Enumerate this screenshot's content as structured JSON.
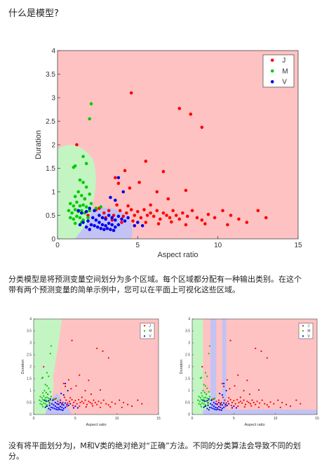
{
  "page": {
    "title": "什么是模型?",
    "para1_line1": "分类模型是将预测变量空间划分为多个区域。每个区域都分配有一种输出类别。在这个",
    "para1_line2": "带有两个预测变量的简单示例中，您可以在平面上可视化这些区域。",
    "para2_line1": "没有将平面划分为J，M和V类的绝对绝对“正确”方法。不同的分类算法会导致不同的划",
    "para2_line2": "分。"
  },
  "colors": {
    "J": "#ff0000",
    "M": "#00cc00",
    "V": "#0000ee",
    "region_J": "#ffc2c2",
    "region_M": "#c2f5c2",
    "region_V": "#c2c2f5"
  },
  "chart_data": [
    {
      "type": "scatter",
      "xlabel": "Aspect ratio",
      "ylabel": "Duration",
      "xlim": [
        0,
        15
      ],
      "ylim": [
        0,
        4
      ],
      "xticks": [
        "0",
        "5",
        "10",
        "15"
      ],
      "yticks": [
        "0",
        "0.5",
        "1",
        "1.5",
        "2",
        "2.5",
        "3",
        "3.5",
        "4"
      ],
      "legend": {
        "position": "top-right",
        "entries": [
          "J",
          "M",
          "V"
        ]
      },
      "series": [
        {
          "name": "J",
          "points": [
            [
              4.6,
              3.1
            ],
            [
              7.6,
              2.77
            ],
            [
              8.3,
              2.65
            ],
            [
              9.0,
              2.37
            ],
            [
              1.2,
              2.0
            ],
            [
              5.5,
              1.65
            ],
            [
              6.6,
              1.43
            ],
            [
              8.0,
              1.03
            ],
            [
              3.8,
              1.18
            ],
            [
              4.5,
              1.08
            ],
            [
              3.6,
              1.3
            ],
            [
              4.2,
              1.45
            ],
            [
              5.1,
              1.2
            ],
            [
              6.2,
              1.0
            ],
            [
              6.9,
              0.85
            ],
            [
              5.8,
              0.72
            ],
            [
              2.6,
              0.65
            ],
            [
              2.9,
              0.55
            ],
            [
              3.2,
              0.6
            ],
            [
              3.5,
              0.5
            ],
            [
              3.7,
              0.72
            ],
            [
              3.9,
              0.6
            ],
            [
              4.1,
              0.48
            ],
            [
              4.3,
              0.55
            ],
            [
              4.4,
              0.7
            ],
            [
              4.6,
              0.62
            ],
            [
              4.8,
              0.5
            ],
            [
              5.0,
              0.58
            ],
            [
              5.2,
              0.45
            ],
            [
              5.4,
              0.62
            ],
            [
              5.6,
              0.5
            ],
            [
              5.8,
              0.55
            ],
            [
              6.0,
              0.48
            ],
            [
              6.2,
              0.6
            ],
            [
              6.4,
              0.42
            ],
            [
              6.6,
              0.55
            ],
            [
              6.8,
              0.5
            ],
            [
              7.0,
              0.45
            ],
            [
              7.2,
              0.6
            ],
            [
              7.4,
              0.5
            ],
            [
              7.6,
              0.42
            ],
            [
              7.8,
              0.55
            ],
            [
              8.1,
              0.48
            ],
            [
              8.4,
              0.6
            ],
            [
              8.7,
              0.45
            ],
            [
              9.0,
              0.4
            ],
            [
              9.4,
              0.52
            ],
            [
              9.8,
              0.45
            ],
            [
              10.3,
              0.6
            ],
            [
              10.8,
              0.5
            ],
            [
              11.3,
              0.42
            ],
            [
              11.8,
              0.35
            ],
            [
              12.5,
              0.6
            ],
            [
              13.0,
              0.45
            ],
            [
              3.4,
              0.4
            ],
            [
              4.0,
              0.35
            ],
            [
              4.7,
              0.38
            ],
            [
              5.5,
              0.35
            ],
            [
              6.3,
              0.32
            ],
            [
              7.1,
              0.36
            ],
            [
              8.0,
              0.3
            ],
            [
              9.2,
              0.32
            ],
            [
              10.6,
              0.3
            ],
            [
              3.0,
              0.45
            ],
            [
              2.4,
              0.62
            ],
            [
              1.7,
              0.85
            ],
            [
              1.9,
              0.5
            ]
          ]
        },
        {
          "name": "M",
          "points": [
            [
              2.1,
              2.87
            ],
            [
              2.0,
              2.55
            ],
            [
              1.0,
              1.52
            ],
            [
              1.1,
              1.55
            ],
            [
              1.6,
              1.75
            ],
            [
              1.8,
              1.6
            ],
            [
              1.4,
              1.25
            ],
            [
              1.6,
              1.2
            ],
            [
              1.8,
              1.1
            ],
            [
              1.3,
              1.0
            ],
            [
              1.1,
              0.9
            ],
            [
              1.5,
              0.92
            ],
            [
              1.7,
              0.85
            ],
            [
              2.0,
              0.95
            ],
            [
              0.8,
              0.75
            ],
            [
              1.0,
              0.7
            ],
            [
              1.2,
              0.78
            ],
            [
              1.4,
              0.7
            ],
            [
              1.6,
              0.72
            ],
            [
              1.8,
              0.68
            ],
            [
              2.1,
              0.75
            ],
            [
              0.7,
              0.6
            ],
            [
              0.9,
              0.55
            ],
            [
              1.1,
              0.62
            ],
            [
              1.3,
              0.58
            ],
            [
              1.5,
              0.6
            ],
            [
              1.7,
              0.55
            ],
            [
              2.0,
              0.6
            ],
            [
              2.4,
              0.65
            ],
            [
              2.7,
              0.68
            ],
            [
              0.8,
              0.45
            ],
            [
              1.0,
              0.42
            ],
            [
              1.2,
              0.48
            ],
            [
              1.4,
              0.45
            ],
            [
              1.6,
              0.4
            ],
            [
              1.9,
              0.45
            ],
            [
              1.1,
              0.33
            ],
            [
              1.5,
              0.35
            ]
          ]
        },
        {
          "name": "V",
          "points": [
            [
              3.8,
              1.3
            ],
            [
              4.1,
              1.0
            ],
            [
              3.3,
              0.88
            ],
            [
              3.6,
              0.82
            ],
            [
              2.0,
              0.65
            ],
            [
              2.3,
              0.6
            ],
            [
              1.5,
              0.55
            ],
            [
              1.3,
              0.6
            ],
            [
              1.8,
              0.58
            ],
            [
              2.6,
              0.5
            ],
            [
              2.8,
              0.45
            ],
            [
              3.0,
              0.42
            ],
            [
              3.2,
              0.5
            ],
            [
              3.4,
              0.45
            ],
            [
              3.6,
              0.4
            ],
            [
              3.8,
              0.48
            ],
            [
              4.0,
              0.42
            ],
            [
              4.2,
              0.38
            ],
            [
              2.2,
              0.45
            ],
            [
              2.4,
              0.4
            ],
            [
              2.6,
              0.35
            ],
            [
              2.8,
              0.3
            ],
            [
              3.0,
              0.28
            ],
            [
              3.2,
              0.33
            ],
            [
              3.4,
              0.3
            ],
            [
              3.6,
              0.25
            ],
            [
              3.8,
              0.3
            ],
            [
              1.9,
              0.38
            ],
            [
              2.1,
              0.3
            ],
            [
              2.3,
              0.28
            ],
            [
              2.5,
              0.25
            ],
            [
              2.7,
              0.22
            ],
            [
              2.9,
              0.2
            ],
            [
              3.1,
              0.22
            ],
            [
              3.3,
              0.2
            ],
            [
              3.5,
              0.18
            ],
            [
              1.6,
              0.35
            ],
            [
              1.4,
              0.3
            ],
            [
              4.4,
              0.45
            ],
            [
              5.0,
              0.35
            ],
            [
              4.8,
              0.28
            ],
            [
              5.3,
              0.28
            ],
            [
              1.8,
              0.25
            ],
            [
              2.0,
              0.2
            ]
          ]
        }
      ],
      "regions": "J background; M green region around small aspect ratio; V blue region below"
    },
    {
      "type": "scatter",
      "xlabel": "Aspect ratio",
      "ylabel": "Duration",
      "xlim": [
        0,
        15
      ],
      "ylim": [
        0,
        4
      ],
      "xticks": [
        "0",
        "5",
        "10",
        "15"
      ],
      "yticks": [
        "0",
        "0.5",
        "1",
        "1.5",
        "2",
        "2.5",
        "3",
        "3.5",
        "4"
      ],
      "legend": {
        "position": "top-right",
        "entries": [
          "J",
          "M",
          "V"
        ]
      }
    },
    {
      "type": "scatter",
      "xlabel": "Aspect ratio",
      "ylabel": "Duration",
      "xlim": [
        0,
        15
      ],
      "ylim": [
        0,
        4
      ],
      "xticks": [
        "0",
        "5",
        "10",
        "15"
      ],
      "yticks": [
        "0",
        "0.5",
        "1",
        "1.5",
        "2",
        "2.5",
        "3",
        "3.5",
        "4"
      ],
      "legend": {
        "position": "top-right",
        "entries": [
          "J",
          "M",
          "V"
        ]
      }
    }
  ]
}
